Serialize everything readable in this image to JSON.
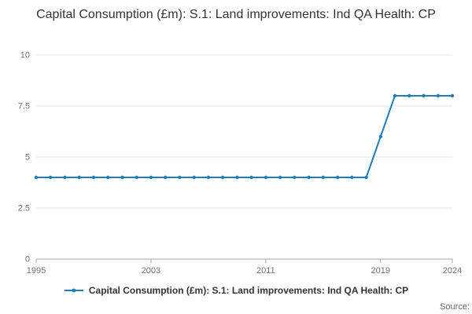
{
  "title": "Capital Consumption (£m): S.1: Land improvements: Ind QA Health: CP",
  "legend": {
    "label": "Capital Consumption (£m): S.1: Land improvements: Ind QA Health: CP"
  },
  "source_label": "Source:",
  "colors": {
    "line": "#1e7ebc",
    "grid": "#e6e6e6",
    "axis": "#a8a8a8",
    "tick_text": "#707070",
    "title_text": "#333333"
  },
  "chart_data": {
    "type": "line",
    "title": "Capital Consumption (£m): S.1: Land improvements: Ind QA Health: CP",
    "xlabel": "",
    "ylabel": "",
    "x": [
      1995,
      1996,
      1997,
      1998,
      1999,
      2000,
      2001,
      2002,
      2003,
      2004,
      2005,
      2006,
      2007,
      2008,
      2009,
      2010,
      2011,
      2012,
      2013,
      2014,
      2015,
      2016,
      2017,
      2018,
      2019,
      2020,
      2021,
      2022,
      2023,
      2024
    ],
    "values": [
      4,
      4,
      4,
      4,
      4,
      4,
      4,
      4,
      4,
      4,
      4,
      4,
      4,
      4,
      4,
      4,
      4,
      4,
      4,
      4,
      4,
      4,
      4,
      4,
      6,
      8,
      8,
      8,
      8,
      8
    ],
    "ylim": [
      0,
      10
    ],
    "yticks": [
      0,
      2.5,
      5,
      7.5,
      10
    ],
    "xticks": [
      1995,
      2003,
      2011,
      2019,
      2024
    ],
    "grid": true,
    "marker": "circle",
    "legend_position": "bottom"
  }
}
